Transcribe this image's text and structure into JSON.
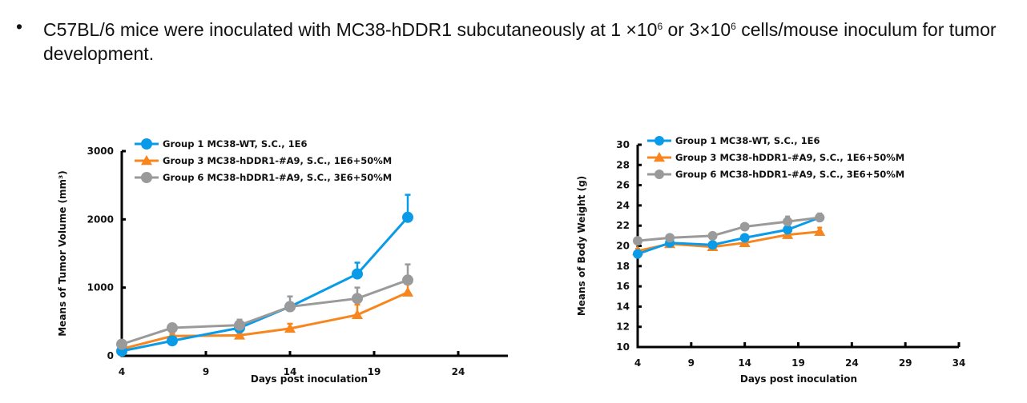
{
  "slide": {
    "bullet_symbol": "•",
    "text_part1": "C57BL/6 mice were inoculated with MC38-hDDR1 subcutaneously at 1 ×10",
    "sup1": "6",
    "text_part2": " or 3×10",
    "sup2": "6",
    "text_part3": " cells/mouse inoculum for tumor development."
  },
  "colors": {
    "group1": "#0A9BE8",
    "group3": "#F7861E",
    "group6": "#9A9A9A",
    "axis": "#000000"
  },
  "chart_data": [
    {
      "type": "line",
      "title": "",
      "xlabel": "Days post inoculation",
      "ylabel": "Means of Tumor Volume (mm³)",
      "xlim": [
        4,
        27
      ],
      "ylim": [
        0,
        3000
      ],
      "xticks": [
        4,
        9,
        14,
        19,
        24
      ],
      "yticks": [
        0,
        1000,
        2000,
        3000
      ],
      "grid": false,
      "legend_position": "top-left",
      "x": [
        4,
        7,
        11,
        14,
        18,
        21
      ],
      "series": [
        {
          "name": "Group 1 MC38-WT, S.C., 1E6",
          "color_key": "group1",
          "marker": "circle",
          "values": [
            70,
            220,
            410,
            720,
            1200,
            2030
          ],
          "errors": [
            20,
            30,
            40,
            60,
            165,
            330
          ]
        },
        {
          "name": "Group 3 MC38-hDDR1-#A9, S.C., 1E6+50%M",
          "color_key": "group3",
          "marker": "triangle",
          "values": [
            100,
            290,
            300,
            400,
            600,
            930
          ],
          "errors": [
            20,
            30,
            30,
            70,
            150,
            200
          ]
        },
        {
          "name": "Group 6 MC38-hDDR1-#A9, S.C., 3E6+50%M",
          "color_key": "group6",
          "marker": "circle",
          "values": [
            170,
            410,
            450,
            720,
            840,
            1110
          ],
          "errors": [
            20,
            30,
            80,
            150,
            160,
            230
          ]
        }
      ]
    },
    {
      "type": "line",
      "title": "",
      "xlabel": "Days post inoculation",
      "ylabel": "Means of Body Weight (g)",
      "xlim": [
        4,
        34
      ],
      "ylim": [
        10,
        30
      ],
      "xticks": [
        4,
        9,
        14,
        19,
        24,
        29,
        34
      ],
      "yticks": [
        10,
        12,
        14,
        16,
        18,
        20,
        22,
        24,
        26,
        28,
        30
      ],
      "grid": false,
      "legend_position": "top-left",
      "x": [
        4,
        7,
        11,
        14,
        18,
        21
      ],
      "series": [
        {
          "name": "Group 1 MC38-WT, S.C., 1E6",
          "color_key": "group1",
          "marker": "circle",
          "values": [
            19.2,
            20.3,
            20.1,
            20.8,
            21.6,
            22.8
          ],
          "errors": [
            0.2,
            0.2,
            0.2,
            0.3,
            0.3,
            0.3
          ]
        },
        {
          "name": "Group 3 MC38-hDDR1-#A9, S.C., 1E6+50%M",
          "color_key": "group3",
          "marker": "triangle",
          "values": [
            19.5,
            20.2,
            19.9,
            20.3,
            21.1,
            21.4
          ],
          "errors": [
            0.2,
            0.2,
            0.2,
            0.2,
            0.3,
            0.4
          ]
        },
        {
          "name": "Group 6 MC38-hDDR1-#A9, S.C., 3E6+50%M",
          "color_key": "group6",
          "marker": "circle",
          "values": [
            20.5,
            20.8,
            21.0,
            21.9,
            22.4,
            22.8
          ],
          "errors": [
            0.2,
            0.2,
            0.2,
            0.3,
            0.5,
            0.4
          ]
        }
      ]
    }
  ]
}
